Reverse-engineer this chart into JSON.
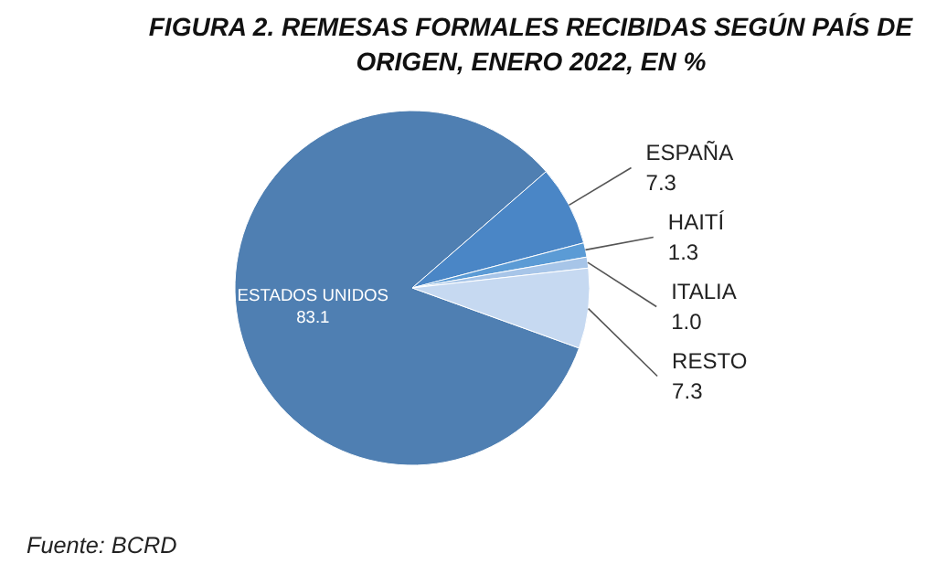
{
  "chart_data": {
    "type": "pie",
    "title": "FIGURA 2. REMESAS FORMALES RECIBIDAS SEGÚN PAÍS DE ORIGEN, ENERO 2022, EN %",
    "categories": [
      "ESTADOS UNIDOS",
      "ESPAÑA",
      "HAITÍ",
      "ITALIA",
      "RESTO"
    ],
    "values": [
      83.1,
      7.3,
      1.3,
      1.0,
      7.3
    ],
    "colors": [
      "#4f7fb2",
      "#4a86c6",
      "#5b9bd5",
      "#a7c5e8",
      "#c6d9f1"
    ],
    "value_labels": [
      "83.1",
      "7.3",
      "1.3",
      "1.0",
      "7.3"
    ],
    "data_labels": true,
    "annotations": [
      "Fuente: BCRD"
    ]
  }
}
